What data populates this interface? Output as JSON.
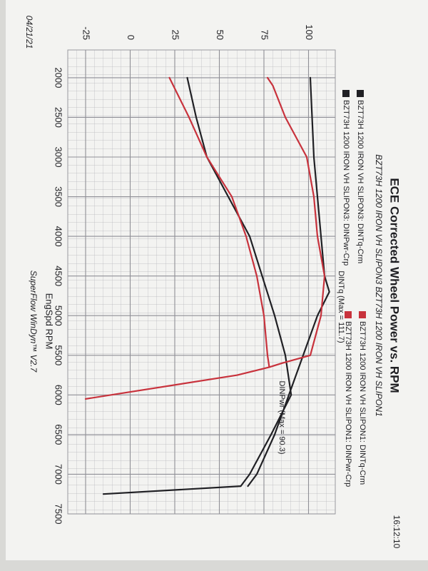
{
  "chart_data": {
    "type": "line",
    "title": "ECE Corrected Wheel Power vs. RPM",
    "subtitle": "BZT73H 1200 IRON VH SLIPON3 BZT73H 1200 IRON VH SLIPON1",
    "x_label": "EngSpd RPM",
    "footer": "SuperFlow WinDyn™ V2.7",
    "date": "04/21/21",
    "time": "16:12:10",
    "annotations": [
      "DINTq (Max = 111.7)",
      "DINPwr (Max = 90.3)"
    ],
    "xlim": [
      1650,
      7500
    ],
    "xticks": [
      2000,
      2500,
      3000,
      3500,
      4000,
      4500,
      5000,
      5500,
      6000,
      6500,
      7000,
      7500
    ],
    "ylim": [
      -35,
      115
    ],
    "yticks": [
      -25,
      0,
      25,
      50,
      75,
      100
    ],
    "grid": true,
    "series": [
      {
        "name": "BZT73H 1200 IRON VH SLIPON3: DINTq-Crm",
        "color": "#202024",
        "x": [
          2000,
          2500,
          3000,
          3500,
          4000,
          4500,
          4700,
          5000,
          5500,
          6000,
          6500,
          7000,
          7150
        ],
        "values": [
          101,
          102,
          103,
          105,
          107,
          109,
          111.7,
          105,
          97,
          89,
          81,
          71,
          66
        ]
      },
      {
        "name": "BZT73H 1200 IRON VH SLIPON3: DINPwr-Crp",
        "color": "#202024",
        "x": [
          2000,
          2500,
          3000,
          3500,
          4000,
          4500,
          5000,
          5500,
          6000,
          6500,
          7000,
          7150,
          7250
        ],
        "values": [
          32,
          37,
          43,
          55,
          67,
          74,
          81,
          87,
          90.3,
          79,
          67,
          62,
          -15
        ]
      },
      {
        "name": "BZT73H 1200 IRON VH SLIPON1: DINTq-Crm",
        "color": "#c8323c",
        "x": [
          2000,
          2100,
          2500,
          3000,
          3500,
          4000,
          4500,
          5000,
          5500,
          5600,
          5650
        ],
        "values": [
          77,
          80,
          87,
          99,
          103,
          105,
          109,
          107,
          101,
          85,
          78
        ]
      },
      {
        "name": "BZT73H 1200 IRON VH SLIPON1: DINPwr-Crp",
        "color": "#c8323c",
        "x": [
          2000,
          2500,
          3000,
          3500,
          4000,
          4500,
          5000,
          5500,
          5650,
          5750,
          6050
        ],
        "values": [
          22,
          33,
          43,
          57,
          65,
          71,
          75,
          77,
          78,
          60,
          -25
        ]
      }
    ]
  }
}
